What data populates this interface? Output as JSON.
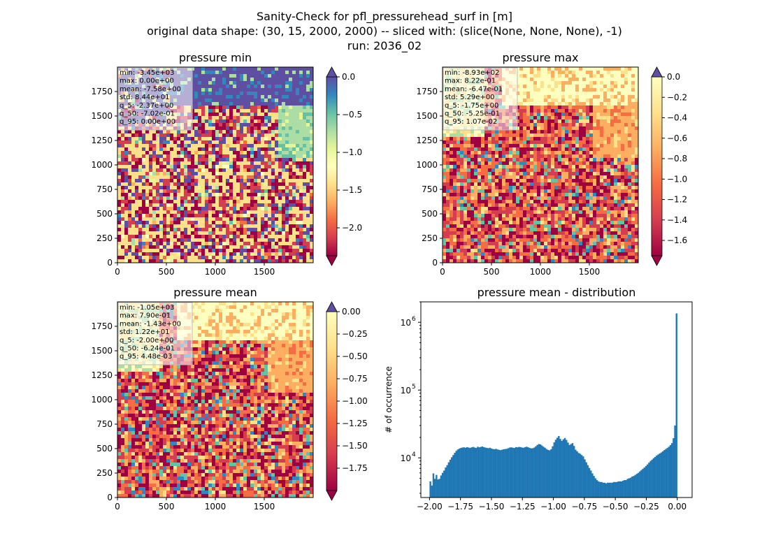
{
  "suptitle": {
    "line1": "Sanity-Check for pfl_pressurehead_surf in [m]",
    "line2": "original data shape: (30, 15, 2000, 2000) -- sliced with: (slice(None, None, None), -1)",
    "line3": "run: 2036_02"
  },
  "colors": {
    "histogram_bar": "#1f77b4",
    "colormap": "Spectral",
    "under": "#9e0142",
    "over": "#5e4fa2"
  },
  "chart_data": [
    {
      "type": "heatmap",
      "title": "pressure min",
      "x_ticks": [
        "0",
        "500",
        "1000",
        "1500"
      ],
      "y_ticks": [
        "0",
        "250",
        "500",
        "750",
        "1000",
        "1250",
        "1500",
        "1750"
      ],
      "xlim": [
        0,
        2000
      ],
      "ylim": [
        0,
        2000
      ],
      "colorbar": {
        "vmin": -2.37,
        "vmax": 0.0,
        "ticks": [
          "0.0",
          "−0.5",
          "−1.0",
          "−1.5",
          "−2.0"
        ],
        "tick_values": [
          0.0,
          -0.5,
          -1.0,
          -1.5,
          -2.0
        ],
        "extend": "both"
      },
      "stats": [
        "min: -3.45e+03",
        "max: 0.00e+00",
        "mean: -7.58e+00",
        "std: 8.44e+01",
        "q_5: -2.37e+00",
        "q_50: -7.02e-01",
        "q_95: 0.00e+00"
      ]
    },
    {
      "type": "heatmap",
      "title": "pressure max",
      "x_ticks": [
        "0",
        "500",
        "1000",
        "1500"
      ],
      "y_ticks": [
        "0",
        "250",
        "500",
        "750",
        "1000",
        "1250",
        "1500",
        "1750"
      ],
      "xlim": [
        0,
        2000
      ],
      "ylim": [
        0,
        2000
      ],
      "colorbar": {
        "vmin": -1.75,
        "vmax": 0.0,
        "ticks": [
          "0.0",
          "−0.2",
          "−0.4",
          "−0.6",
          "−0.8",
          "−1.0",
          "−1.2",
          "−1.4",
          "−1.6"
        ],
        "tick_values": [
          0.0,
          -0.2,
          -0.4,
          -0.6,
          -0.8,
          -1.0,
          -1.2,
          -1.4,
          -1.6
        ],
        "extend": "both"
      },
      "stats": [
        "min: -8.93e+02",
        "max: 8.22e-01",
        "mean: -6.47e-01",
        "std: 5.29e+00",
        "q_5: -1.75e+00",
        "q_50: -5.25e-01",
        "q_95: 1.07e-02"
      ]
    },
    {
      "type": "heatmap",
      "title": "pressure mean",
      "x_ticks": [
        "0",
        "500",
        "1000",
        "1500"
      ],
      "y_ticks": [
        "0",
        "250",
        "500",
        "750",
        "1000",
        "1250",
        "1500",
        "1750"
      ],
      "xlim": [
        0,
        2000
      ],
      "ylim": [
        0,
        2000
      ],
      "colorbar": {
        "vmin": -2.0,
        "vmax": 0.0,
        "ticks": [
          "0.00",
          "−0.25",
          "−0.50",
          "−0.75",
          "−1.00",
          "−1.25",
          "−1.50",
          "−1.75"
        ],
        "tick_values": [
          0.0,
          -0.25,
          -0.5,
          -0.75,
          -1.0,
          -1.25,
          -1.5,
          -1.75
        ],
        "extend": "both"
      },
      "stats": [
        "min: -1.05e+03",
        "max: 7.90e-01",
        "mean: -1.43e+00",
        "std: 1.22e+01",
        "q_5: -2.00e+00",
        "q_50: -6.24e-01",
        "q_95: 4.48e-03"
      ]
    },
    {
      "type": "bar",
      "title": "pressure mean - distribution",
      "xlabel": "",
      "ylabel": "# of occurrence",
      "yscale": "log",
      "xlim": [
        -2.07,
        0.12
      ],
      "ylim": [
        2600,
        2000000
      ],
      "x_ticks": [
        "−2.00",
        "−1.75",
        "−1.50",
        "−1.25",
        "−1.00",
        "−0.75",
        "−0.50",
        "−0.25",
        "0.00"
      ],
      "x_tick_values": [
        -2.0,
        -1.75,
        -1.5,
        -1.25,
        -1.0,
        -0.75,
        -0.5,
        -0.25,
        0.0
      ],
      "y_ticks": [
        "10",
        "10",
        "10"
      ],
      "y_tick_exponents": [
        "4",
        "5",
        "6"
      ],
      "y_tick_values": [
        10000,
        100000,
        1000000
      ],
      "bin_start": -2.0,
      "bin_end": 0.0,
      "counts": [
        4500,
        3900,
        5900,
        4900,
        5600,
        4800,
        4900,
        5500,
        6000,
        6500,
        7200,
        7800,
        8600,
        9400,
        10200,
        11000,
        11900,
        12700,
        13300,
        13700,
        14000,
        14200,
        14300,
        14100,
        14400,
        14200,
        14000,
        14300,
        14500,
        14200,
        14000,
        14600,
        14300,
        14500,
        14700,
        14400,
        14200,
        14000,
        13900,
        14100,
        13700,
        13500,
        13400,
        13600,
        13300,
        13100,
        13000,
        13200,
        13400,
        13500,
        13600,
        13900,
        14200,
        14300,
        14100,
        14000,
        14400,
        14300,
        14500,
        14400,
        14200,
        14100,
        14400,
        14600,
        14300,
        14000,
        13800,
        13900,
        14200,
        14800,
        15500,
        16000,
        15800,
        15200,
        14600,
        14100,
        13500,
        13100,
        12900,
        13400,
        14800,
        16900,
        18500,
        19800,
        21000,
        19000,
        17800,
        18800,
        19600,
        18400,
        16800,
        15500,
        16000,
        16500,
        15000,
        13200,
        12500,
        11800,
        11500,
        11000,
        10500,
        9500,
        8600,
        7800,
        7100,
        6500,
        5900,
        5400,
        5000,
        4700,
        4500,
        4400,
        4400,
        4300,
        4300,
        4200,
        4300,
        4300,
        4300,
        4300,
        4400,
        4400,
        4400,
        4500,
        4500,
        4500,
        4600,
        4700,
        4700,
        4900,
        5000,
        5100,
        5300,
        5400,
        5600,
        5800,
        6000,
        6300,
        6600,
        6900,
        7200,
        7600,
        8000,
        8500,
        9000,
        9400,
        9900,
        10300,
        10800,
        11200,
        11600,
        12000,
        12500,
        13000,
        13500,
        14000,
        14600,
        15400,
        16500,
        19500,
        30000,
        1350000
      ]
    }
  ]
}
